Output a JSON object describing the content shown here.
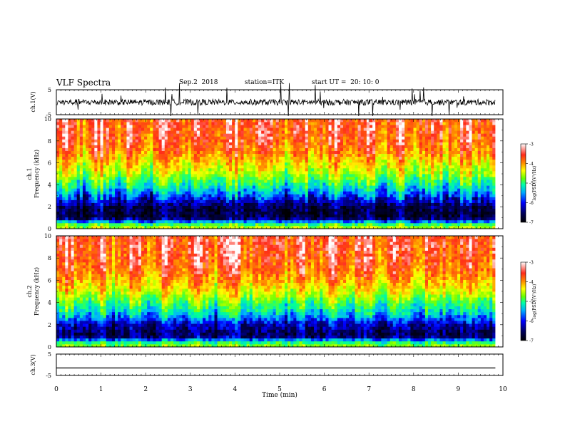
{
  "header": {
    "title": "VLF Spectra",
    "date": "Sep.2  2018",
    "station": "station=ITK",
    "start": "start UT =  20: 10: 0"
  },
  "panels": {
    "ch1_ylabel": "ch.1(V)",
    "ch1_spec_ylabel_a": "ch.1",
    "ch1_spec_ylabel_b": "Frequency (kHz)",
    "ch2_spec_ylabel_a": "ch.2",
    "ch2_spec_ylabel_b": "Frequency (kHz)",
    "ch3_ylabel": "ch.3(V)",
    "xlabel": "Time (min)",
    "colorbar_label": "log(PSD)(V²/Hz)"
  },
  "colors": {
    "spectrum_scale": [
      "#000000",
      "#000050",
      "#0000ff",
      "#00b4ff",
      "#00ff9a",
      "#7aff00",
      "#ffff00",
      "#ff8c00",
      "#ff2a1a",
      "#ffffff"
    ]
  },
  "chart_data": [
    {
      "type": "line",
      "name": "ch.1 waveform",
      "xlabel": "",
      "ylabel": "ch.1(V)",
      "xlim": [
        0,
        10
      ],
      "ylim": [
        -5,
        5
      ],
      "yticks": [
        -5,
        5
      ],
      "x": [
        0,
        9.83
      ],
      "y_mean": 0,
      "note_range": [
        -1.2,
        1.2
      ]
    },
    {
      "type": "heatmap",
      "name": "ch.1 spectrogram",
      "ylabel": "Frequency (kHz)",
      "xlim": [
        0,
        10
      ],
      "ylim": [
        0,
        10
      ],
      "yticks": [
        0,
        2,
        4,
        6,
        8,
        10
      ],
      "data_x_max": 9.83,
      "frequency_kHz": [
        0.25,
        1,
        2,
        3,
        4,
        5,
        6,
        7,
        8,
        9,
        10
      ],
      "log_psd": [
        -4.6,
        -6.7,
        -6.6,
        -5.9,
        -5.2,
        -4.6,
        -4.2,
        -3.8,
        -3.6,
        -3.5,
        -3.5
      ],
      "colorbar": {
        "range": [
          -7,
          -3
        ],
        "ticks": [
          -3,
          -4,
          -5,
          -6,
          -7
        ],
        "label": "log(PSD)(V²/Hz)"
      }
    },
    {
      "type": "heatmap",
      "name": "ch.2 spectrogram",
      "ylabel": "Frequency (kHz)",
      "xlim": [
        0,
        10
      ],
      "ylim": [
        0,
        10
      ],
      "yticks": [
        0,
        2,
        4,
        6,
        8,
        10
      ],
      "data_x_max": 9.83,
      "frequency_kHz": [
        0.25,
        1,
        2,
        3,
        4,
        5,
        6,
        7,
        8,
        9,
        10
      ],
      "log_psd": [
        -4.8,
        -6.6,
        -6.3,
        -5.5,
        -5.0,
        -4.4,
        -4.0,
        -3.7,
        -3.6,
        -3.5,
        -3.5
      ],
      "colorbar": {
        "range": [
          -7,
          -3
        ],
        "ticks": [
          -3,
          -4,
          -5,
          -6,
          -7
        ],
        "label": "log(PSD)(V²/Hz)"
      }
    },
    {
      "type": "line",
      "name": "ch.3 waveform",
      "xlabel": "Time (min)",
      "ylabel": "ch.3(V)",
      "xlim": [
        0,
        10
      ],
      "ylim": [
        -5,
        5
      ],
      "yticks": [
        -5,
        5
      ],
      "xticks": [
        0,
        1,
        2,
        3,
        4,
        5,
        6,
        7,
        8,
        9,
        10
      ],
      "x": [
        0,
        9.83
      ],
      "y_mean": -1.5
    }
  ]
}
